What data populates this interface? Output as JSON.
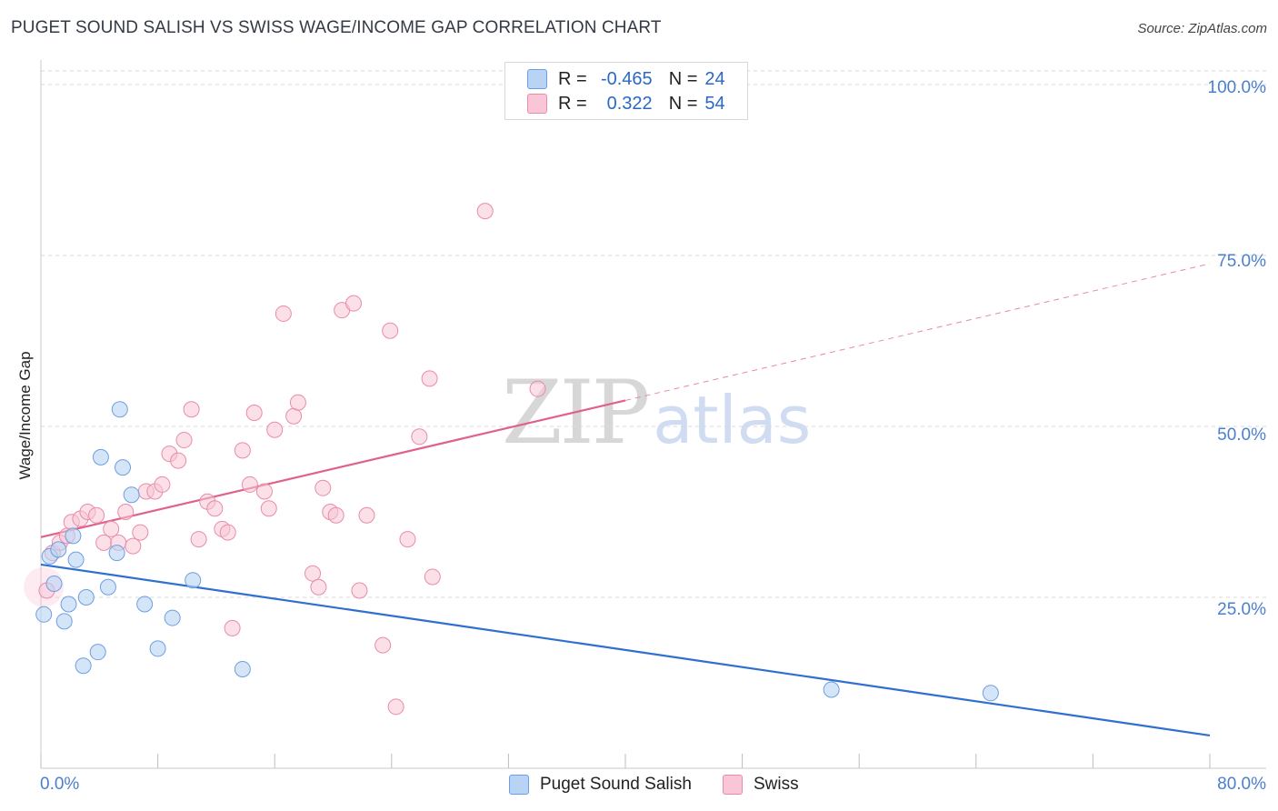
{
  "header": {
    "title": "PUGET SOUND SALISH VS SWISS WAGE/INCOME GAP CORRELATION CHART",
    "source": "Source: ZipAtlas.com"
  },
  "watermark": {
    "zip": "ZIP",
    "atlas": "atlas"
  },
  "legend": {
    "items": [
      {
        "r_label": "R =",
        "r_value": "-0.465",
        "n_label": "N =",
        "n_value": "24"
      },
      {
        "r_label": "R =",
        "r_value": "0.322",
        "n_label": "N =",
        "n_value": "54"
      }
    ]
  },
  "bottom_legend": {
    "series1": "Puget Sound Salish",
    "series2": "Swiss"
  },
  "colors": {
    "series1_fill": "#b9d3f4",
    "series1_stroke": "#6f9ee0",
    "series1_line": "#2f6fd0",
    "series2_fill": "#f8c6d6",
    "series2_stroke": "#e98bab",
    "series2_line": "#e0628a",
    "grid": "#d9d9d9",
    "tick_text": "#4a7fcf"
  },
  "chart_data": {
    "type": "scatter",
    "title": "PUGET SOUND SALISH VS SWISS WAGE/INCOME GAP CORRELATION CHART",
    "xlabel": "",
    "ylabel": "Wage/Income Gap",
    "xlim": [
      0,
      80
    ],
    "ylim": [
      0,
      102
    ],
    "x_tick_labels": [
      "0.0%",
      "80.0%"
    ],
    "y_ticks": [
      25,
      50,
      75,
      100
    ],
    "y_tick_labels": [
      "25.0%",
      "50.0%",
      "75.0%",
      "100.0%"
    ],
    "grid": true,
    "series": [
      {
        "name": "Puget Sound Salish",
        "r": -0.465,
        "n": 24,
        "points": [
          [
            0.2,
            22.5
          ],
          [
            0.6,
            31.0
          ],
          [
            0.9,
            27.0
          ],
          [
            1.2,
            32.0
          ],
          [
            1.6,
            21.5
          ],
          [
            1.9,
            24.0
          ],
          [
            2.2,
            34.0
          ],
          [
            2.4,
            30.5
          ],
          [
            2.9,
            15.0
          ],
          [
            3.1,
            25.0
          ],
          [
            3.9,
            17.0
          ],
          [
            4.1,
            45.5
          ],
          [
            4.6,
            26.5
          ],
          [
            5.2,
            31.5
          ],
          [
            5.4,
            52.5
          ],
          [
            5.6,
            44.0
          ],
          [
            6.2,
            40.0
          ],
          [
            7.1,
            24.0
          ],
          [
            8.0,
            17.5
          ],
          [
            9.0,
            22.0
          ],
          [
            10.4,
            27.5
          ],
          [
            13.8,
            14.5
          ],
          [
            54.1,
            11.5
          ],
          [
            65.0,
            11.0
          ]
        ],
        "trend": {
          "x": [
            0,
            80
          ],
          "y": [
            29.8,
            4.8
          ],
          "dashed_to": null
        }
      },
      {
        "name": "Swiss",
        "r": 0.322,
        "n": 54,
        "points": [
          [
            0.4,
            26.0
          ],
          [
            0.8,
            31.5
          ],
          [
            1.3,
            33.0
          ],
          [
            1.8,
            34.0
          ],
          [
            2.1,
            36.0
          ],
          [
            2.7,
            36.5
          ],
          [
            3.2,
            37.5
          ],
          [
            3.8,
            37.0
          ],
          [
            4.3,
            33.0
          ],
          [
            4.8,
            35.0
          ],
          [
            5.3,
            33.0
          ],
          [
            5.8,
            37.5
          ],
          [
            6.3,
            32.5
          ],
          [
            6.8,
            34.5
          ],
          [
            7.2,
            40.5
          ],
          [
            7.8,
            40.5
          ],
          [
            8.3,
            41.5
          ],
          [
            8.8,
            46.0
          ],
          [
            9.4,
            45.0
          ],
          [
            9.8,
            48.0
          ],
          [
            10.3,
            52.5
          ],
          [
            10.8,
            33.5
          ],
          [
            11.4,
            39.0
          ],
          [
            11.9,
            38.0
          ],
          [
            12.4,
            35.0
          ],
          [
            12.8,
            34.5
          ],
          [
            13.1,
            20.5
          ],
          [
            13.8,
            46.5
          ],
          [
            14.3,
            41.5
          ],
          [
            14.6,
            52.0
          ],
          [
            15.3,
            40.5
          ],
          [
            15.6,
            38.0
          ],
          [
            16.0,
            49.5
          ],
          [
            16.6,
            66.5
          ],
          [
            17.3,
            51.5
          ],
          [
            17.6,
            53.5
          ],
          [
            18.6,
            28.5
          ],
          [
            19.0,
            26.5
          ],
          [
            19.3,
            41.0
          ],
          [
            19.8,
            37.5
          ],
          [
            20.2,
            37.0
          ],
          [
            20.6,
            67.0
          ],
          [
            21.4,
            68.0
          ],
          [
            21.8,
            26.0
          ],
          [
            22.3,
            37.0
          ],
          [
            23.4,
            18.0
          ],
          [
            23.9,
            64.0
          ],
          [
            24.3,
            9.0
          ],
          [
            25.1,
            33.5
          ],
          [
            25.9,
            48.5
          ],
          [
            26.6,
            57.0
          ],
          [
            26.8,
            28.0
          ],
          [
            30.4,
            81.5
          ],
          [
            34.0,
            55.5
          ]
        ],
        "trend": {
          "x": [
            0,
            40
          ],
          "y": [
            33.8,
            53.8
          ],
          "dashed_x": [
            40,
            80
          ],
          "dashed_y": [
            53.8,
            73.8
          ]
        }
      }
    ]
  }
}
